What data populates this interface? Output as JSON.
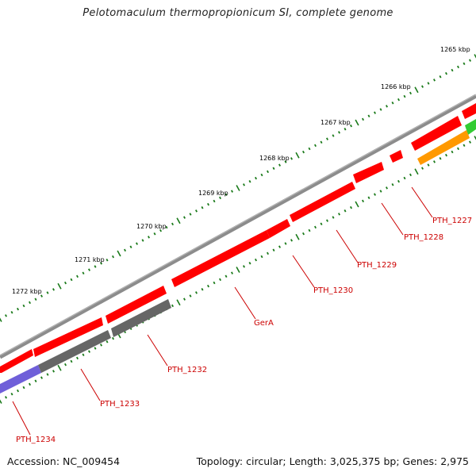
{
  "title": "Pelotomaculum thermopropionicum SI, complete genome",
  "footer": {
    "accession": "Accession: NC_009454",
    "summary": "Topology: circular; Length: 3,025,375 bp; Genes: 2,975"
  },
  "scale_labels": [
    "1265 kbp",
    "1266 kbp",
    "1267 kbp",
    "1268 kbp",
    "1269 kbp",
    "1270 kbp",
    "1271 kbp",
    "1272 kbp"
  ],
  "gene_labels": [
    "PTH_1227",
    "PTH_1228",
    "PTH_1229",
    "PTH_1230",
    "GerA",
    "PTH_1232",
    "PTH_1233",
    "PTH_1234"
  ],
  "colors": {
    "backbone": "#7a7a7a",
    "cds_red": "#ff0000",
    "cds_grey": "#666666",
    "cds_blue": "#6f5fd9",
    "cds_orange": "#ff9900",
    "cds_green": "#33cc33",
    "tick": "#1a7a1a",
    "label": "#cc0000"
  }
}
